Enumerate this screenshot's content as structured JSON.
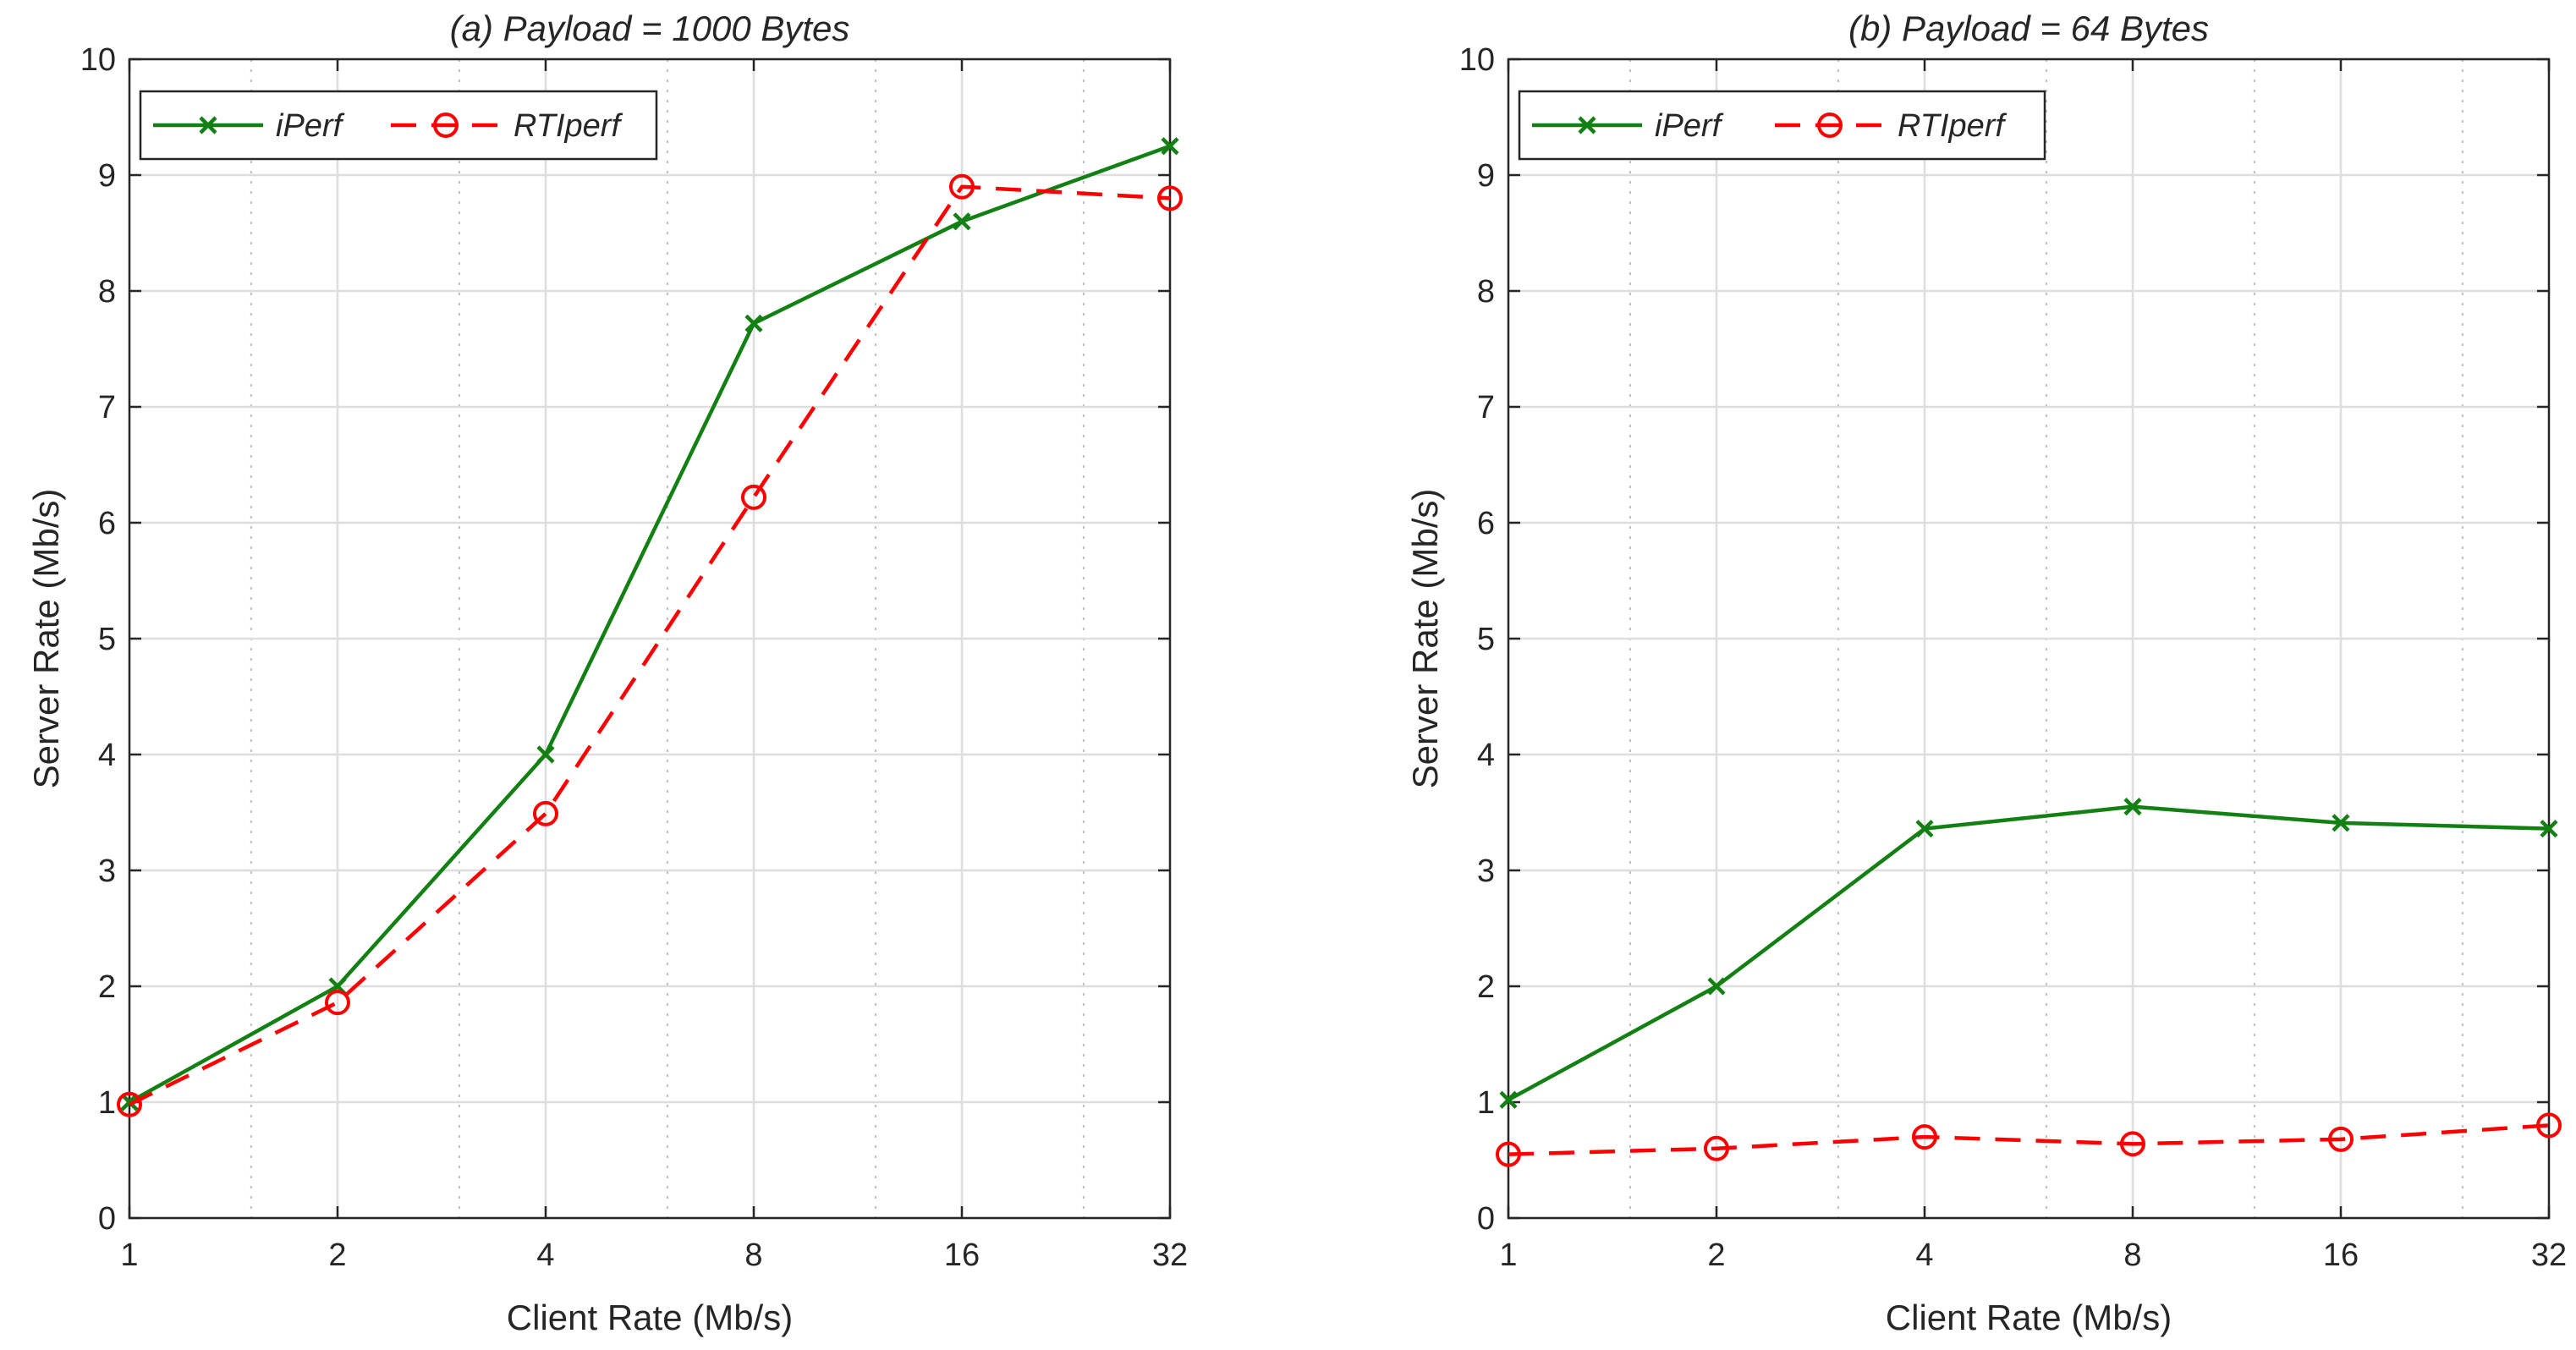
{
  "chart_data": [
    {
      "type": "line",
      "title": "(a) Payload = 1000 Bytes",
      "xlabel": "Client Rate (Mb/s)",
      "ylabel": "Server Rate (Mb/s)",
      "xscale": "log2",
      "xlim": [
        1,
        32
      ],
      "ylim": [
        0,
        10
      ],
      "xticks": [
        1,
        2,
        4,
        8,
        16,
        32
      ],
      "xtick_labels": [
        "1",
        "2",
        "4",
        "8",
        "16",
        "32"
      ],
      "yticks": [
        0,
        1,
        2,
        3,
        4,
        5,
        6,
        7,
        8,
        9,
        10
      ],
      "ytick_labels": [
        "0",
        "1",
        "2",
        "3",
        "4",
        "5",
        "6",
        "7",
        "8",
        "9",
        "10"
      ],
      "grid": true,
      "legend": "top-left",
      "x": [
        1,
        2,
        4,
        8,
        16,
        32
      ],
      "series": [
        {
          "name": "iPerf",
          "values": [
            1.0,
            2.0,
            4.0,
            7.72,
            8.6,
            9.25
          ],
          "color": "#128012",
          "marker": "x",
          "linestyle": "solid"
        },
        {
          "name": "RTIperf",
          "values": [
            0.98,
            1.86,
            3.49,
            6.22,
            8.9,
            8.8
          ],
          "color": "#ff0000",
          "marker": "circle",
          "linestyle": "dashed"
        }
      ]
    },
    {
      "type": "line",
      "title": "(b) Payload = 64 Bytes",
      "xlabel": "Client Rate (Mb/s)",
      "ylabel": "Server Rate (Mb/s)",
      "xscale": "log2",
      "xlim": [
        1,
        32
      ],
      "ylim": [
        0,
        10
      ],
      "xticks": [
        1,
        2,
        4,
        8,
        16,
        32
      ],
      "xtick_labels": [
        "1",
        "2",
        "4",
        "8",
        "16",
        "32"
      ],
      "yticks": [
        0,
        1,
        2,
        3,
        4,
        5,
        6,
        7,
        8,
        9,
        10
      ],
      "ytick_labels": [
        "0",
        "1",
        "2",
        "3",
        "4",
        "5",
        "6",
        "7",
        "8",
        "9",
        "10"
      ],
      "grid": true,
      "legend": "top-left",
      "x": [
        1,
        2,
        4,
        8,
        16,
        32
      ],
      "series": [
        {
          "name": "iPerf",
          "values": [
            1.02,
            2.0,
            3.36,
            3.55,
            3.41,
            3.36
          ],
          "color": "#128012",
          "marker": "x",
          "linestyle": "solid"
        },
        {
          "name": "RTIperf",
          "values": [
            0.55,
            0.6,
            0.7,
            0.64,
            0.68,
            0.8
          ],
          "color": "#ff0000",
          "marker": "circle",
          "linestyle": "dashed"
        }
      ]
    }
  ]
}
